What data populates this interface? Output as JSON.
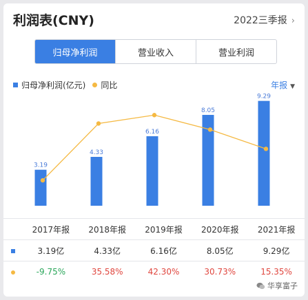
{
  "header": {
    "title": "利润表(CNY)",
    "period": "2022三季报"
  },
  "tabs": [
    {
      "label": "归母净利润",
      "active": true
    },
    {
      "label": "营业收入",
      "active": false
    },
    {
      "label": "营业利润",
      "active": false
    }
  ],
  "legend": {
    "bar": "归母净利润(亿元)",
    "line": "同比"
  },
  "range_select": "年报",
  "colors": {
    "bar": "#3a7fe3",
    "line": "#f5b942",
    "negative": "#2aa65a",
    "positive": "#e0463e"
  },
  "chart_data": {
    "type": "bar",
    "categories": [
      "2017年报",
      "2018年报",
      "2019年报",
      "2020年报",
      "2021年报"
    ],
    "series": [
      {
        "name": "归母净利润(亿元)",
        "type": "bar",
        "values": [
          3.19,
          4.33,
          6.16,
          8.05,
          9.29
        ],
        "labels": [
          "3.19",
          "4.33",
          "6.16",
          "8.05",
          "9.29"
        ]
      },
      {
        "name": "同比",
        "type": "line",
        "values": [
          -9.75,
          35.58,
          42.3,
          30.73,
          15.35
        ]
      }
    ],
    "ylim_bar": [
      0,
      10
    ],
    "ylim_line": [
      -30,
      60
    ],
    "legend_position": "top-left",
    "grid": false
  },
  "table": {
    "headers": [
      "2017年报",
      "2018年报",
      "2019年报",
      "2020年报",
      "2021年报"
    ],
    "profit_row": [
      "3.19亿",
      "4.33亿",
      "6.16亿",
      "8.05亿",
      "9.29亿"
    ],
    "yoy_row": [
      "-9.75%",
      "35.58%",
      "42.30%",
      "30.73%",
      "15.35%"
    ]
  },
  "watermark": "华享富子"
}
